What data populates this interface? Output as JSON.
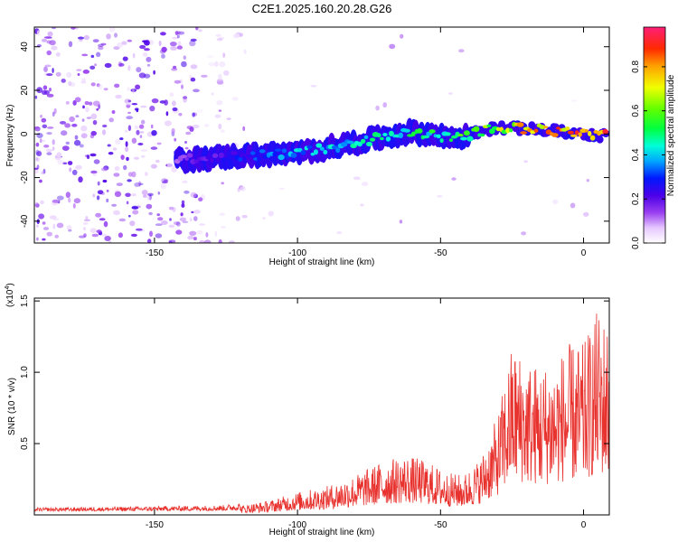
{
  "title": "C2E1.2025.160.20.28.G26",
  "chart_data": [
    {
      "type": "heatmap",
      "xlabel": "Height of straight line (km)",
      "ylabel": "Frequency (Hz)",
      "xlim": [
        -192,
        9
      ],
      "ylim": [
        -50,
        49
      ],
      "xticks": [
        -150,
        -100,
        -50,
        0
      ],
      "yticks": [
        -40,
        -20,
        0,
        20,
        40
      ],
      "colorbar": {
        "label": "Normalized spectral amplitude",
        "range": [
          0,
          0.98
        ],
        "ticks": [
          0.0,
          0.2,
          0.4,
          0.6,
          0.8
        ]
      },
      "ridge": {
        "description_points_x_km": [
          -140,
          -120,
          -100,
          -80,
          -60,
          -45,
          -30,
          -15,
          0,
          8
        ],
        "frequency_hz": [
          -12,
          -10,
          -9,
          -4,
          1,
          -2,
          3,
          2,
          0,
          -1
        ],
        "amplitude": [
          0.15,
          0.3,
          0.4,
          0.45,
          0.5,
          0.55,
          0.7,
          0.85,
          0.95,
          0.9
        ]
      }
    },
    {
      "type": "line",
      "xlabel": "Height of straight line (km)",
      "ylabel": "SNR (10 * v/v)",
      "scale_label": "(x10",
      "scale_exp": "4",
      "xlim": [
        -192,
        9
      ],
      "ylim": [
        0,
        1.52
      ],
      "xticks": [
        -150,
        -100,
        -50,
        0
      ],
      "yticks": [
        0.5,
        1.0,
        1.5
      ],
      "ytick_labels": [
        "0.5",
        "1.0",
        "1.5"
      ],
      "series": [
        {
          "color": "#e8322e",
          "envelope_x": [
            -192,
            -150,
            -125,
            -110,
            -100,
            -90,
            -80,
            -70,
            -62,
            -55,
            -48,
            -42,
            -36,
            -30,
            -25,
            -20,
            -15,
            -10,
            -5,
            0,
            5,
            9
          ],
          "envelope_y": [
            0.03,
            0.04,
            0.05,
            0.1,
            0.16,
            0.2,
            0.28,
            0.38,
            0.42,
            0.38,
            0.3,
            0.28,
            0.4,
            0.7,
            1.2,
            1.1,
            1.05,
            1.1,
            1.2,
            1.2,
            1.45,
            1.35
          ]
        }
      ]
    }
  ]
}
